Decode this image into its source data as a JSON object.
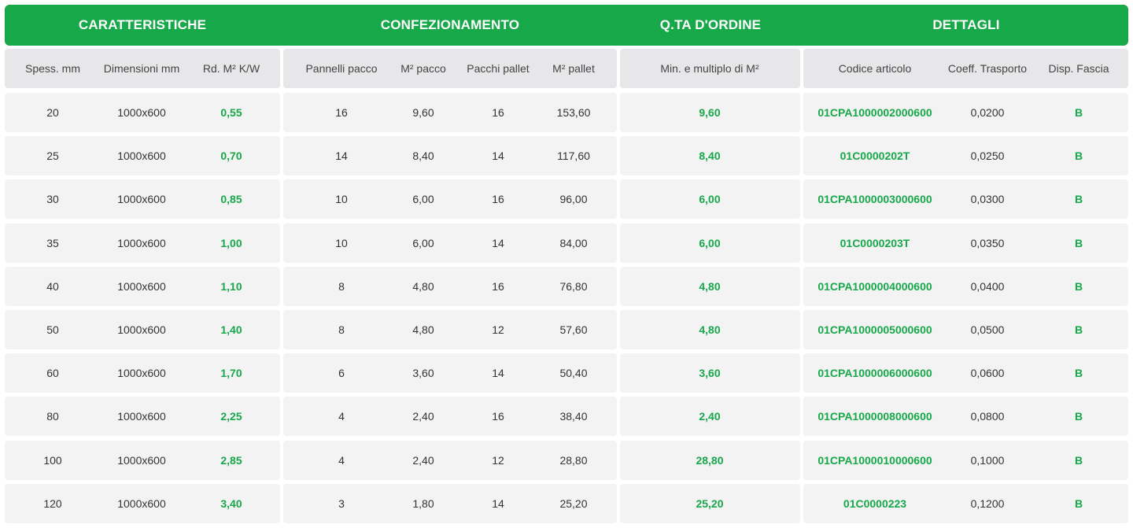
{
  "groups": {
    "caratteristiche": "CARATTERISTICHE",
    "confezionamento": "CONFEZIONAMENTO",
    "qta_ordine": "Q.TA D'ORDINE",
    "dettagli": "DETTAGLI"
  },
  "headers": {
    "spess": "Spess. mm",
    "dimensioni": "Dimensioni mm",
    "rd": "Rd. M² K/W",
    "pannelli_pacco": "Pannelli pacco",
    "m2_pacco": "M² pacco",
    "pacchi_pallet": "Pacchi pallet",
    "m2_pallet": "M² pallet",
    "min_multiplo": "Min. e multiplo di M²",
    "codice": "Codice articolo",
    "coeff": "Coeff. Trasporto",
    "disp": "Disp. Fascia"
  },
  "rows": [
    {
      "spess": "20",
      "dim": "1000x600",
      "rd": "0,55",
      "pannelli": "16",
      "m2pacco": "9,60",
      "pacchi": "16",
      "m2pallet": "153,60",
      "min": "9,60",
      "codice": "01CPA1000002000600",
      "coeff": "0,0200",
      "disp": "B"
    },
    {
      "spess": "25",
      "dim": "1000x600",
      "rd": "0,70",
      "pannelli": "14",
      "m2pacco": "8,40",
      "pacchi": "14",
      "m2pallet": "117,60",
      "min": "8,40",
      "codice": "01C0000202T",
      "coeff": "0,0250",
      "disp": "B"
    },
    {
      "spess": "30",
      "dim": "1000x600",
      "rd": "0,85",
      "pannelli": "10",
      "m2pacco": "6,00",
      "pacchi": "16",
      "m2pallet": "96,00",
      "min": "6,00",
      "codice": "01CPA1000003000600",
      "coeff": "0,0300",
      "disp": "B"
    },
    {
      "spess": "35",
      "dim": "1000x600",
      "rd": "1,00",
      "pannelli": "10",
      "m2pacco": "6,00",
      "pacchi": "14",
      "m2pallet": "84,00",
      "min": "6,00",
      "codice": "01C0000203T",
      "coeff": "0,0350",
      "disp": "B"
    },
    {
      "spess": "40",
      "dim": "1000x600",
      "rd": "1,10",
      "pannelli": "8",
      "m2pacco": "4,80",
      "pacchi": "16",
      "m2pallet": "76,80",
      "min": "4,80",
      "codice": "01CPA1000004000600",
      "coeff": "0,0400",
      "disp": "B"
    },
    {
      "spess": "50",
      "dim": "1000x600",
      "rd": "1,40",
      "pannelli": "8",
      "m2pacco": "4,80",
      "pacchi": "12",
      "m2pallet": "57,60",
      "min": "4,80",
      "codice": "01CPA1000005000600",
      "coeff": "0,0500",
      "disp": "B"
    },
    {
      "spess": "60",
      "dim": "1000x600",
      "rd": "1,70",
      "pannelli": "6",
      "m2pacco": "3,60",
      "pacchi": "14",
      "m2pallet": "50,40",
      "min": "3,60",
      "codice": "01CPA1000006000600",
      "coeff": "0,0600",
      "disp": "B"
    },
    {
      "spess": "80",
      "dim": "1000x600",
      "rd": "2,25",
      "pannelli": "4",
      "m2pacco": "2,40",
      "pacchi": "16",
      "m2pallet": "38,40",
      "min": "2,40",
      "codice": "01CPA1000008000600",
      "coeff": "0,0800",
      "disp": "B"
    },
    {
      "spess": "100",
      "dim": "1000x600",
      "rd": "2,85",
      "pannelli": "4",
      "m2pacco": "2,40",
      "pacchi": "12",
      "m2pallet": "28,80",
      "min": "28,80",
      "codice": "01CPA1000010000600",
      "coeff": "0,1000",
      "disp": "B"
    },
    {
      "spess": "120",
      "dim": "1000x600",
      "rd": "3,40",
      "pannelli": "3",
      "m2pacco": "1,80",
      "pacchi": "14",
      "m2pallet": "25,20",
      "min": "25,20",
      "codice": "01C0000223",
      "coeff": "0,1200",
      "disp": "B"
    }
  ],
  "colors": {
    "accent": "#17a84a",
    "row_bg": "#f3f3f4",
    "header_bg": "#e7e7e9",
    "text": "#333333"
  }
}
